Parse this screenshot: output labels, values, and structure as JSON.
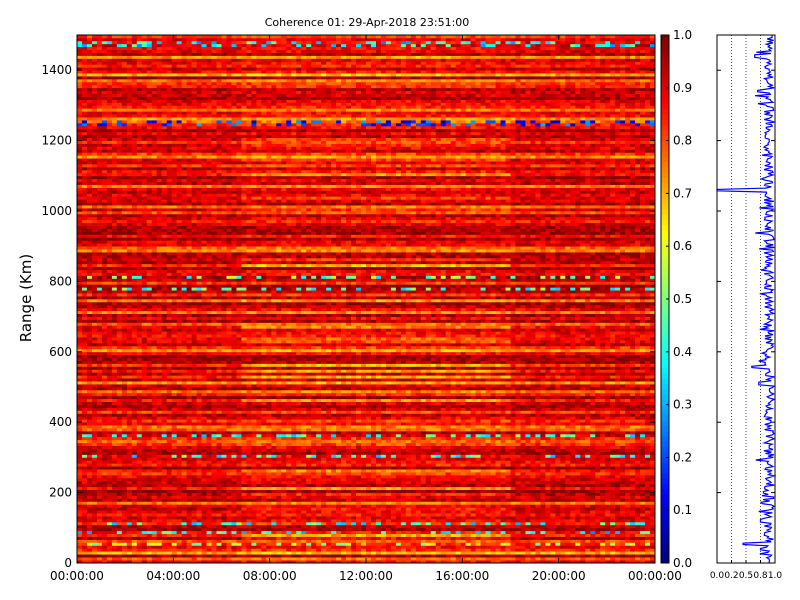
{
  "chart_data": [
    {
      "type": "heatmap",
      "title": "Coherence 01: 29-Apr-2018 23:51:00",
      "xlabel": "",
      "ylabel": "Range (Km)",
      "x_tick_labels": [
        "00:00:00",
        "04:00:00",
        "08:00:00",
        "12:00:00",
        "16:00:00",
        "20:00:00",
        "00:00:00"
      ],
      "x_range_hours": [
        0,
        24
      ],
      "y_ticks": [
        0,
        200,
        400,
        600,
        800,
        1000,
        1200,
        1400
      ],
      "ylim": [
        0,
        1500
      ],
      "colormap": "jet",
      "colorbar": {
        "range": [
          0.0,
          1.0
        ],
        "ticks": [
          "0.0",
          "0.1",
          "0.2",
          "0.3",
          "0.4",
          "0.5",
          "0.6",
          "0.7",
          "0.8",
          "0.9",
          "1.0"
        ]
      },
      "time_segments": [
        {
          "start_hour": 0,
          "end_hour": 6.9,
          "pattern": "side"
        },
        {
          "start_hour": 6.9,
          "end_hour": 18.0,
          "pattern": "center"
        },
        {
          "start_hour": 18.0,
          "end_hour": 24,
          "pattern": "side"
        }
      ],
      "low_coherence_ranges_km": [
        {
          "range": 1250,
          "value": 0.05
        },
        {
          "range": 1475,
          "value": 0.25
        },
        {
          "range": 810,
          "value": 0.35
        },
        {
          "range": 780,
          "value": 0.3
        },
        {
          "range": 365,
          "value": 0.3
        },
        {
          "range": 305,
          "value": 0.3
        },
        {
          "range": 115,
          "value": 0.3
        },
        {
          "range": 85,
          "value": 0.25
        },
        {
          "range": 55,
          "value": 0.45
        }
      ]
    },
    {
      "type": "line",
      "title": "",
      "xlabel": "",
      "ylabel": "",
      "x_tick_labels": [
        "0.0",
        "0.2",
        "0.5",
        "0.8",
        "1.0"
      ],
      "xlim": [
        0,
        1
      ],
      "ylim": [
        0,
        1500
      ],
      "grid": "vertical dotted at 0.25, 0.5, 0.75",
      "line_color": "#0000ff",
      "profile": [
        {
          "range_km": 0,
          "coherence": 0.9
        },
        {
          "range_km": 40,
          "coherence": 0.75
        },
        {
          "range_km": 55,
          "coherence": 0.45
        },
        {
          "range_km": 120,
          "coherence": 0.75
        },
        {
          "range_km": 200,
          "coherence": 0.8
        },
        {
          "range_km": 330,
          "coherence": 0.9
        },
        {
          "range_km": 510,
          "coherence": 0.72
        },
        {
          "range_km": 557,
          "coherence": 0.6
        },
        {
          "range_km": 550,
          "coherence": 0.9
        },
        {
          "range_km": 700,
          "coherence": 0.9
        },
        {
          "range_km": 800,
          "coherence": 0.85
        },
        {
          "range_km": 1060,
          "coherence": 0.0
        },
        {
          "range_km": 1200,
          "coherence": 0.9
        },
        {
          "range_km": 1340,
          "coherence": 0.7
        },
        {
          "range_km": 1400,
          "coherence": 0.9
        },
        {
          "range_km": 1440,
          "coherence": 0.65
        },
        {
          "range_km": 1500,
          "coherence": 0.95
        }
      ]
    }
  ]
}
